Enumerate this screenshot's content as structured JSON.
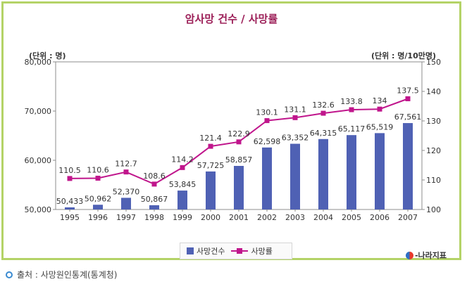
{
  "page": {
    "title": "암사망 건수 / 사망률",
    "left_unit": "(단위 : 명)",
    "right_unit": "(단위 : 명/10만명)",
    "brand": "-나라지표",
    "source": "출처 : 사망원인통계(통계청)"
  },
  "colors": {
    "frame": "#b4d367",
    "title": "#9c1f58",
    "bars": "#4f61b4",
    "line": "#c0168c"
  },
  "chart_data": {
    "type": "bar",
    "title": "암사망 건수 / 사망률",
    "categories": [
      "1995",
      "1996",
      "1997",
      "1998",
      "1999",
      "2000",
      "2001",
      "2002",
      "2003",
      "2004",
      "2005",
      "2006",
      "2007"
    ],
    "series": [
      {
        "name": "사망건수",
        "type": "bar",
        "axis": "left",
        "values": [
          50433,
          50962,
          52370,
          50867,
          53845,
          57725,
          58857,
          62598,
          63352,
          64315,
          65117,
          65519,
          67561
        ],
        "labels": [
          "50,433",
          "50,962",
          "52,370",
          "50,867",
          "53,845",
          "57,725",
          "58,857",
          "62,598",
          "63,352",
          "64,315",
          "65,117",
          "65,519",
          "67,561"
        ]
      },
      {
        "name": "사망률",
        "type": "line",
        "axis": "right",
        "values": [
          110.5,
          110.6,
          112.7,
          108.6,
          114.2,
          121.4,
          122.9,
          130.1,
          131.1,
          132.6,
          133.8,
          134,
          137.5
        ],
        "labels": [
          "110.5",
          "110.6",
          "112.7",
          "108.6",
          "114.2",
          "121.4",
          "122.9",
          "130.1",
          "131.1",
          "132.6",
          "133.8",
          "134",
          "137.5"
        ]
      }
    ],
    "left_axis": {
      "ylim": [
        50000,
        80000
      ],
      "ticks": [
        "50,000",
        "60,000",
        "70,000",
        "80,000"
      ],
      "tick_values": [
        50000,
        60000,
        70000,
        80000
      ]
    },
    "right_axis": {
      "ylim": [
        100,
        150
      ],
      "ticks": [
        "100",
        "110",
        "120",
        "130",
        "140",
        "150"
      ],
      "tick_values": [
        100,
        110,
        120,
        130,
        140,
        150
      ]
    },
    "grid": false,
    "legend": "bottom-center"
  }
}
